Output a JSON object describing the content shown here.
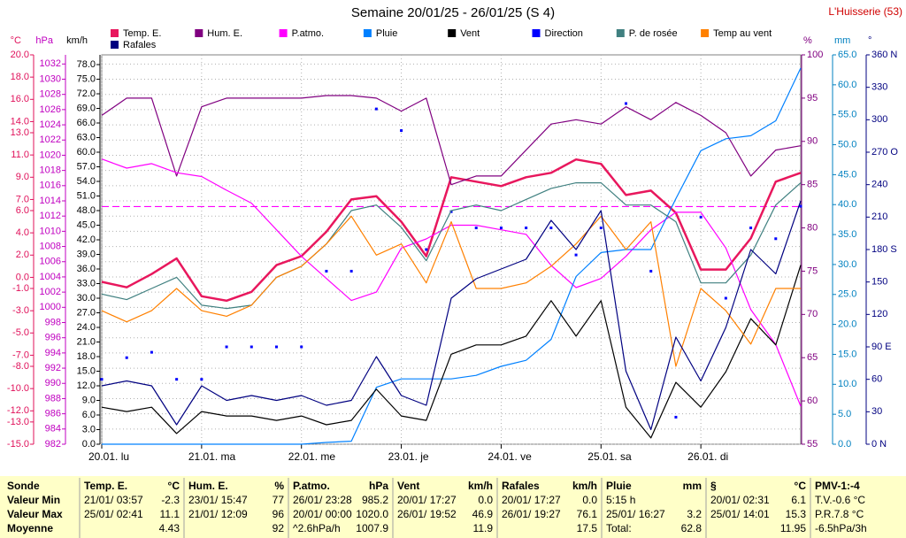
{
  "chart_data": {
    "type": "line",
    "title": "Semaine 20/01/25 - 26/01/25 (S 4)",
    "station": "L'Huisserie (53)",
    "grid": true,
    "categories": [
      "20.01. lu",
      null,
      null,
      null,
      "21.01. ma",
      null,
      null,
      null,
      "22.01. me",
      null,
      null,
      null,
      "23.01. je",
      null,
      null,
      null,
      "24.01. ve",
      null,
      null,
      null,
      "25.01. sa",
      null,
      null,
      null,
      "26.01. di",
      null,
      null,
      null,
      null
    ],
    "axes": [
      {
        "label": "°C",
        "side": "left",
        "color": "#e0105a",
        "lim": [
          -15,
          20
        ],
        "ticks": [
          {
            "value": 20,
            "label": "20.0"
          },
          {
            "value": 18,
            "label": "18.0"
          },
          {
            "value": 16,
            "label": "16.0"
          },
          {
            "value": 14,
            "label": "14.0"
          },
          {
            "value": 13,
            "label": "13.0"
          },
          {
            "value": 11,
            "label": "11.0"
          },
          {
            "value": 9,
            "label": "9.0"
          },
          {
            "value": 7,
            "label": "7.0"
          },
          {
            "value": 6,
            "label": "6.0"
          },
          {
            "value": 4,
            "label": "4.0"
          },
          {
            "value": 2,
            "label": "2.0"
          },
          {
            "value": 0,
            "label": "0.0"
          },
          {
            "value": -1,
            "label": "-1.0"
          },
          {
            "value": -3,
            "label": "-3.0"
          },
          {
            "value": -5,
            "label": "-5.0"
          },
          {
            "value": -7,
            "label": "-7.0"
          },
          {
            "value": -8,
            "label": "-8.0"
          },
          {
            "value": -10,
            "label": "-10.0"
          },
          {
            "value": -12,
            "label": "-12.0"
          },
          {
            "value": -13,
            "label": "-13.0"
          },
          {
            "value": -15,
            "label": "-15.0"
          }
        ]
      },
      {
        "label": "hPa",
        "side": "left",
        "color": "#c000c0",
        "lim": [
          982,
          1033.2
        ],
        "ticks": [
          1032,
          1030,
          1028,
          1026,
          1024,
          1022,
          1020,
          1018,
          1016,
          1014,
          1012,
          1010,
          1008,
          1006,
          1004,
          1002,
          1000,
          998,
          996,
          994,
          992,
          990,
          988,
          986,
          984,
          982
        ]
      },
      {
        "label": "km/h",
        "side": "left",
        "color": "#000000",
        "lim": [
          0,
          80
        ],
        "ticks": [
          {
            "value": 78,
            "label": "78.0"
          },
          {
            "value": 75,
            "label": "75.0"
          },
          {
            "value": 72,
            "label": "72.0"
          },
          {
            "value": 69,
            "label": "69.0"
          },
          {
            "value": 66,
            "label": "66.0"
          },
          {
            "value": 63,
            "label": "63.0"
          },
          {
            "value": 60,
            "label": "60.0"
          },
          {
            "value": 57,
            "label": "57.0"
          },
          {
            "value": 54,
            "label": "54.0"
          },
          {
            "value": 51,
            "label": "51.0"
          },
          {
            "value": 48,
            "label": "48.0"
          },
          {
            "value": 45,
            "label": "45.0"
          },
          {
            "value": 42,
            "label": "42.0"
          },
          {
            "value": 39,
            "label": "39.0"
          },
          {
            "value": 36,
            "label": "36.0"
          },
          {
            "value": 33,
            "label": "33.0"
          },
          {
            "value": 30,
            "label": "30.0"
          },
          {
            "value": 27,
            "label": "27.0"
          },
          {
            "value": 24,
            "label": "24.0"
          },
          {
            "value": 21,
            "label": "21.0"
          },
          {
            "value": 18,
            "label": "18.0"
          },
          {
            "value": 15,
            "label": "15.0"
          },
          {
            "value": 12,
            "label": "12.0"
          },
          {
            "value": 9,
            "label": "9.0"
          },
          {
            "value": 6,
            "label": "6.0"
          },
          {
            "value": 3,
            "label": "3.0"
          },
          {
            "value": 0,
            "label": "0.0"
          }
        ]
      },
      {
        "label": "%",
        "side": "right",
        "color": "#800080",
        "lim": [
          55,
          100
        ],
        "ticks": [
          100,
          95,
          90,
          85,
          80,
          75,
          70,
          65,
          60,
          55
        ]
      },
      {
        "label": "mm",
        "side": "right",
        "color": "#0080c0",
        "lim": [
          0,
          65
        ],
        "ticks": [
          {
            "value": 65,
            "label": "65.0"
          },
          {
            "value": 60,
            "label": "60.0"
          },
          {
            "value": 55,
            "label": "55.0"
          },
          {
            "value": 50,
            "label": "50.0"
          },
          {
            "value": 45,
            "label": "45.0"
          },
          {
            "value": 40,
            "label": "40.0"
          },
          {
            "value": 35,
            "label": "35.0"
          },
          {
            "value": 30,
            "label": "30.0"
          },
          {
            "value": 25,
            "label": "25.0"
          },
          {
            "value": 20,
            "label": "20.0"
          },
          {
            "value": 15,
            "label": "15.0"
          },
          {
            "value": 10,
            "label": "10.0"
          },
          {
            "value": 5,
            "label": "5.0"
          },
          {
            "value": 0,
            "label": "0.0"
          }
        ]
      },
      {
        "label": "°",
        "side": "right",
        "color": "#000080",
        "lim": [
          0,
          360
        ],
        "ticks": [
          {
            "value": 360,
            "label": "360 N"
          },
          330,
          300,
          {
            "value": 270,
            "label": "270 O"
          },
          240,
          210,
          {
            "value": 180,
            "label": "180 S"
          },
          150,
          120,
          {
            "value": 90,
            "label": "90 E"
          },
          60,
          30,
          {
            "value": 0,
            "label": "0 N"
          }
        ]
      }
    ],
    "reference_line": {
      "axis": "hPa",
      "value": 1013.25,
      "color": "#ff00ff"
    },
    "series": [
      {
        "name": "Temp. E.",
        "axis": "°C",
        "color": "#e8175d",
        "values": [
          -0.4,
          -0.9,
          0.3,
          1.7,
          -1.7,
          -2.1,
          -1.3,
          1.1,
          1.9,
          4.1,
          7.0,
          7.3,
          5.0,
          1.9,
          9.0,
          8.6,
          8.2,
          9.0,
          9.4,
          10.6,
          10.2,
          7.4,
          7.8,
          5.8,
          0.7,
          0.7,
          3.5,
          8.6,
          9.4
        ]
      },
      {
        "name": "Hum. E.",
        "axis": "%",
        "color": "#800080",
        "values": [
          93,
          95,
          95,
          86,
          94,
          95,
          95,
          95,
          95,
          95.3,
          95.3,
          95,
          93.5,
          95,
          85,
          86,
          86,
          89,
          92,
          92.5,
          92,
          94,
          92.5,
          94.5,
          93,
          91,
          86,
          89,
          89.5
        ]
      },
      {
        "name": "P.atmo.",
        "axis": "hPa",
        "color": "#ff00ff",
        "values": [
          1019.5,
          1018.3,
          1018.9,
          1017.7,
          1017.2,
          1015.4,
          1013.7,
          1010.2,
          1006.7,
          1003.8,
          1000.9,
          1002.0,
          1007.8,
          1009.0,
          1010.8,
          1010.8,
          1010.2,
          1009.6,
          1005.5,
          1002.6,
          1003.8,
          1006.7,
          1010.2,
          1012.5,
          1012.5,
          1007.8,
          999.7,
          995.1,
          987.0
        ]
      },
      {
        "name": "Pluie",
        "axis": "mm",
        "color": "#0080ff",
        "values": [
          0,
          0,
          0,
          0,
          0,
          0,
          0,
          0,
          0,
          0.3,
          0.5,
          9.5,
          10.9,
          10.9,
          10.9,
          11.5,
          13,
          14,
          17.5,
          28,
          32,
          32.5,
          32.5,
          41,
          49,
          51,
          51.5,
          54,
          62.8
        ]
      },
      {
        "name": "Vent",
        "axis": "km/h",
        "color": "#000000",
        "values": [
          7.6,
          6.7,
          7.6,
          2.2,
          6.7,
          5.8,
          5.8,
          4.9,
          5.8,
          4.0,
          4.9,
          11.3,
          5.8,
          4.9,
          18.5,
          20.4,
          20.4,
          22.2,
          29.5,
          22.2,
          29.5,
          7.6,
          1.3,
          12.7,
          7.6,
          14.9,
          25.8,
          20.4,
          36.8
        ]
      },
      {
        "name": "Direction",
        "axis": "°",
        "color": "#0000ff",
        "style": "dots",
        "values": [
          60,
          80,
          85,
          60,
          60,
          90,
          90,
          90,
          90,
          160,
          160,
          310,
          290,
          180,
          215,
          200,
          200,
          200,
          200,
          175,
          200,
          315,
          160,
          25,
          210,
          135,
          200,
          190,
          220
        ]
      },
      {
        "name": "P. de rosée",
        "axis": "°C",
        "color": "#408080",
        "values": [
          -1.5,
          -2,
          -1,
          0,
          -2.5,
          -2.8,
          -2.5,
          0,
          1,
          3,
          6,
          6.5,
          4.5,
          1.5,
          6,
          6.5,
          6,
          7,
          8,
          8.5,
          8.5,
          6.5,
          6.5,
          5,
          -0.5,
          -0.5,
          2,
          6.5,
          8.5
        ]
      },
      {
        "name": "Temp au vent",
        "axis": "°C",
        "color": "#ff8000",
        "values": [
          -3,
          -4,
          -3,
          -1,
          -3,
          -3.5,
          -2.5,
          0,
          1,
          3,
          5.5,
          2,
          3,
          -0.5,
          5,
          -1,
          -1,
          -0.5,
          1,
          3,
          5.5,
          2.5,
          5,
          -8,
          -1,
          -3,
          -6,
          -1,
          -1
        ]
      },
      {
        "name": "Rafales",
        "axis": "km/h",
        "color": "#000080",
        "values": [
          12,
          13,
          12,
          4,
          12,
          9,
          10,
          9,
          10,
          8,
          9,
          18,
          10,
          8,
          30,
          34,
          36,
          38,
          46,
          40,
          48,
          15,
          3,
          22,
          13,
          24,
          40,
          35,
          50
        ]
      }
    ]
  },
  "table": {
    "corner": "Sonde",
    "row_labels": [
      "Valeur Min",
      "Valeur Max",
      "Moyenne"
    ],
    "groups": [
      {
        "title": "Temp. E.",
        "unit": "°C",
        "rows": [
          {
            "left": "21/01/ 03:57",
            "right": "-2.3"
          },
          {
            "left": "25/01/ 02:41",
            "right": "11.1"
          },
          {
            "right": "4.43"
          }
        ]
      },
      {
        "title": "Hum. E.",
        "unit": "%",
        "rows": [
          {
            "left": "23/01/ 15:47",
            "right": "77"
          },
          {
            "left": "21/01/ 12:09",
            "right": "96"
          },
          {
            "right": "92"
          }
        ]
      },
      {
        "title": "P.atmo.",
        "unit": "hPa",
        "rows": [
          {
            "left": "26/01/ 23:28",
            "right": "985.2"
          },
          {
            "left": "20/01/ 00:00",
            "right": "1020.0"
          },
          {
            "left": "^2.6hPa/h",
            "right": "1007.9"
          }
        ]
      },
      {
        "title": "Vent",
        "unit": "km/h",
        "rows": [
          {
            "left": "20/01/ 17:27",
            "right": "0.0"
          },
          {
            "left": "26/01/ 19:52",
            "right": "46.9"
          },
          {
            "right": "11.9"
          }
        ]
      },
      {
        "title": "Rafales",
        "unit": "km/h",
        "rows": [
          {
            "left": "20/01/ 17:27",
            "right": "0.0"
          },
          {
            "left": "26/01/ 19:27",
            "right": "76.1"
          },
          {
            "right": "17.5"
          }
        ]
      },
      {
        "title": "Pluie",
        "unit": "mm",
        "rows": [
          {
            "left": "5:15 h"
          },
          {
            "left": "25/01/ 16:27",
            "right": "3.2"
          },
          {
            "left": "Total:",
            "right": "62.8"
          }
        ]
      },
      {
        "title": "§",
        "unit": "°C",
        "rows": [
          {
            "left": "20/01/ 02:31",
            "right": "6.1"
          },
          {
            "left": "25/01/ 14:01",
            "right": "15.3"
          },
          {
            "right": "11.95"
          }
        ]
      }
    ],
    "extra": {
      "title": "PMV-1:-4",
      "rows": [
        "T.V.-0.6 °C",
        "P.R.7.8 °C",
        "-6.5hPa/3h"
      ]
    }
  }
}
